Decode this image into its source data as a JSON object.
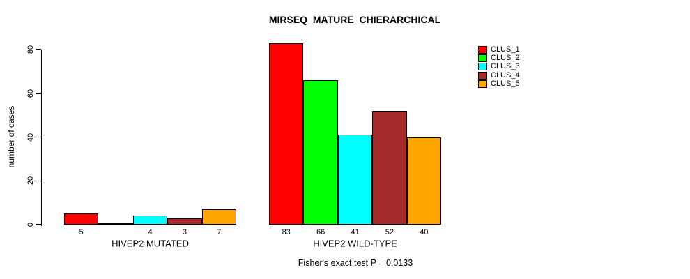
{
  "chart_data": {
    "type": "bar",
    "title": "MIRSEQ_MATURE_CHIERARCHICAL",
    "ylabel": "number of cases",
    "xlabel": "",
    "ylim": [
      0,
      80
    ],
    "y_ticks": [
      0,
      20,
      40,
      60,
      80
    ],
    "grid": false,
    "legend_position": "top-right",
    "groups": [
      "HIVEP2 MUTATED",
      "HIVEP2 WILD-TYPE"
    ],
    "series": [
      {
        "name": "CLUS_1",
        "color": "#FF0000",
        "values": [
          5,
          83
        ]
      },
      {
        "name": "CLUS_2",
        "color": "#00FF00",
        "values": [
          0,
          66
        ]
      },
      {
        "name": "CLUS_3",
        "color": "#00FFFF",
        "values": [
          4,
          41
        ]
      },
      {
        "name": "CLUS_4",
        "color": "#A52A2A",
        "values": [
          3,
          52
        ]
      },
      {
        "name": "CLUS_5",
        "color": "#FFA500",
        "values": [
          7,
          40
        ]
      }
    ],
    "bar_value_labels": [
      [
        "5",
        "",
        "4",
        "3",
        "7"
      ],
      [
        "83",
        "66",
        "41",
        "52",
        "40"
      ]
    ],
    "annotation": "Fisher's exact test P = 0.0133"
  }
}
